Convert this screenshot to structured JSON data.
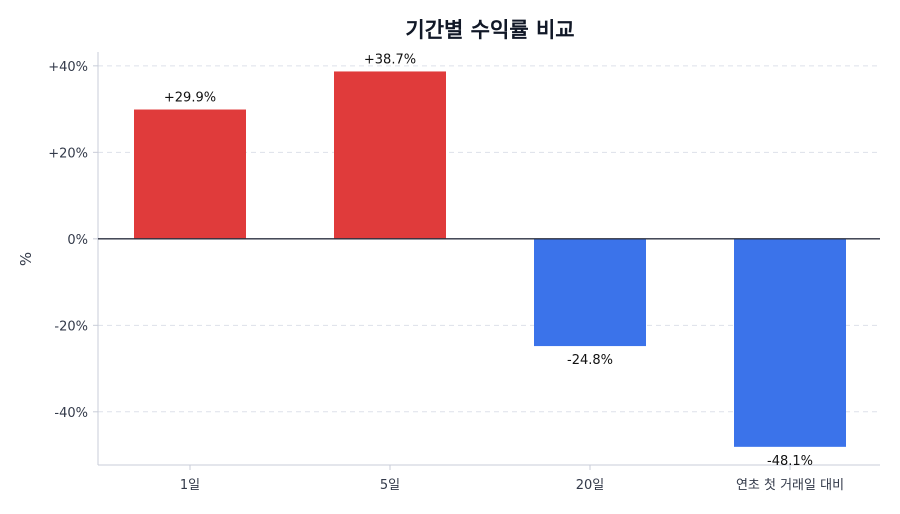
{
  "chart_data": {
    "type": "bar",
    "title": "기간별 수익률 비교",
    "xlabel": "",
    "ylabel": "%",
    "categories": [
      "1일",
      "5일",
      "20일",
      "연초 첫 거래일 대비"
    ],
    "values": [
      29.9,
      38.7,
      -24.8,
      -48.1
    ],
    "data_labels": [
      "+29.9%",
      "+38.7%",
      "-24.8%",
      "-48.1%"
    ],
    "yticks": [
      40,
      20,
      0,
      -20,
      -40
    ],
    "ytick_labels": [
      "+40%",
      "+20%",
      "0%",
      "-20%",
      "-40%"
    ],
    "ylim": [
      -52.3,
      43.2
    ],
    "grid": true,
    "colors": {
      "positive": "#e03b3b",
      "negative": "#3b73ea",
      "zero_line": "#2b3140",
      "grid": "#dde1ea",
      "axis": "#c8ccd8"
    }
  }
}
